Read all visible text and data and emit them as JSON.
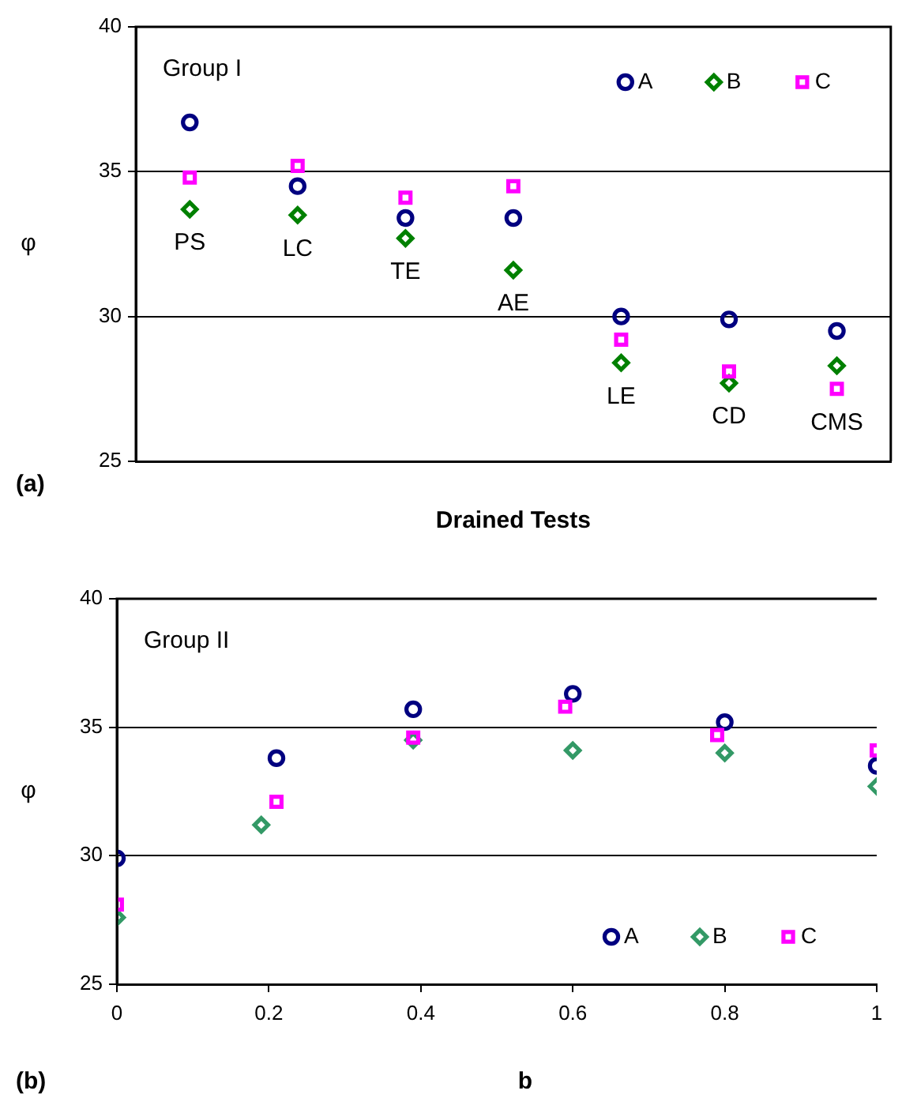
{
  "chart_data": [
    {
      "type": "scatter",
      "title": "Group I",
      "xlabel": "Drained Tests",
      "ylabel": "φ",
      "categories": [
        "PS",
        "LC",
        "TE",
        "AE",
        "LE",
        "CD",
        "CMS"
      ],
      "series": [
        {
          "name": "A",
          "color": "#000080",
          "marker": "circle",
          "values": [
            36.7,
            34.5,
            33.4,
            33.4,
            30.0,
            29.9,
            29.5
          ]
        },
        {
          "name": "B",
          "color": "#008000",
          "marker": "diamond",
          "values": [
            33.7,
            33.5,
            32.7,
            31.6,
            28.4,
            27.7,
            28.3
          ]
        },
        {
          "name": "C",
          "color": "#ff00ff",
          "marker": "square",
          "values": [
            34.8,
            35.2,
            34.1,
            34.5,
            29.2,
            28.1,
            27.5
          ]
        }
      ],
      "ylim": [
        25,
        40
      ],
      "yticks": [
        25,
        30,
        35,
        40
      ],
      "grid": "y",
      "legend": "top right",
      "annotations": [
        "(a)"
      ]
    },
    {
      "type": "scatter",
      "title": "Group II",
      "xlabel": "b",
      "ylabel": "φ",
      "series": [
        {
          "name": "A",
          "color": "#000080",
          "marker": "circle",
          "x": [
            0,
            0.21,
            0.39,
            0.6,
            0.8,
            1
          ],
          "values": [
            29.9,
            33.8,
            35.7,
            36.3,
            35.2,
            33.5
          ]
        },
        {
          "name": "B",
          "color": "#339966",
          "marker": "diamond",
          "x": [
            0,
            0.19,
            0.39,
            0.6,
            0.8,
            1
          ],
          "values": [
            27.6,
            31.2,
            34.5,
            34.1,
            34.0,
            32.7
          ]
        },
        {
          "name": "C",
          "color": "#ff00ff",
          "marker": "square",
          "x": [
            0,
            0.21,
            0.39,
            0.59,
            0.79,
            1
          ],
          "values": [
            28.1,
            32.1,
            34.6,
            35.8,
            34.7,
            34.1
          ]
        }
      ],
      "xlim": [
        0,
        1
      ],
      "xticks": [
        0,
        0.2,
        0.4,
        0.6,
        0.8,
        1
      ],
      "ylim": [
        25,
        40
      ],
      "yticks": [
        25,
        30,
        35,
        40
      ],
      "grid": "y",
      "legend": "bottom right",
      "annotations": [
        "(b)"
      ]
    }
  ]
}
